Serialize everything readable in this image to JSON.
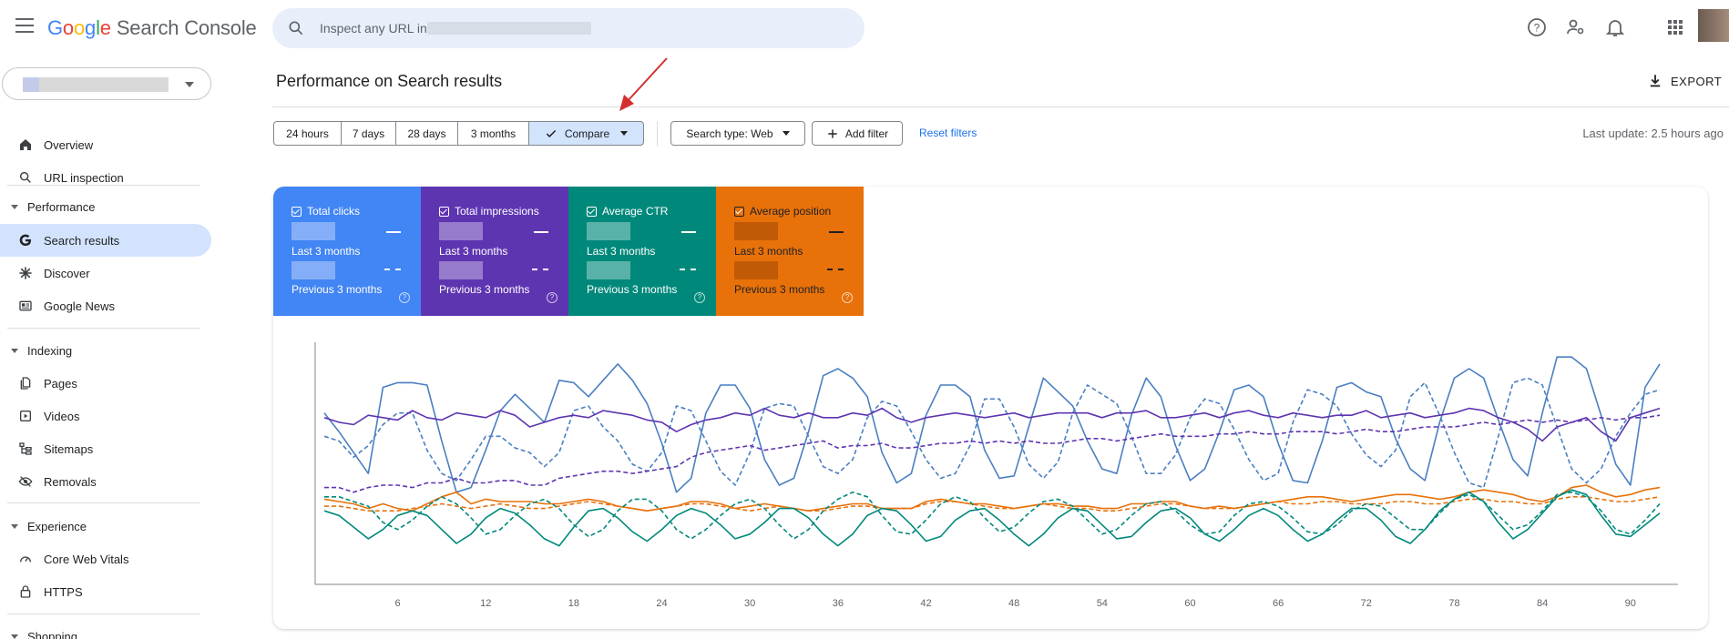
{
  "app": {
    "brand_letters": [
      "G",
      "o",
      "o",
      "g",
      "l",
      "e"
    ],
    "product": "Search Console"
  },
  "search": {
    "placeholder": "Inspect any URL in"
  },
  "header_icons": [
    "help-icon",
    "account-settings-icon",
    "notifications-icon",
    "apps-grid-icon"
  ],
  "sidebar": {
    "items": [
      {
        "label": "Overview",
        "icon": "home-icon"
      },
      {
        "label": "URL inspection",
        "icon": "search-icon"
      },
      {
        "label": "Performance",
        "section": true
      },
      {
        "label": "Search results",
        "icon": "google-g-icon",
        "active": true
      },
      {
        "label": "Discover",
        "icon": "asterisk-icon"
      },
      {
        "label": "Google News",
        "icon": "news-icon"
      },
      {
        "label": "Indexing",
        "section": true
      },
      {
        "label": "Pages",
        "icon": "pages-icon"
      },
      {
        "label": "Videos",
        "icon": "video-icon"
      },
      {
        "label": "Sitemaps",
        "icon": "sitemap-icon"
      },
      {
        "label": "Removals",
        "icon": "removals-icon"
      },
      {
        "label": "Experience",
        "section": true
      },
      {
        "label": "Core Web Vitals",
        "icon": "gauge-icon"
      },
      {
        "label": "HTTPS",
        "icon": "lock-icon"
      },
      {
        "label": "Shopping",
        "section": true
      }
    ]
  },
  "main": {
    "title": "Performance on Search results",
    "export_label": "EXPORT",
    "date_ranges": [
      "24 hours",
      "7 days",
      "28 days",
      "3 months"
    ],
    "compare_label": "Compare",
    "search_type_label": "Search type: Web",
    "add_filter_label": "Add filter",
    "reset_filters_label": "Reset filters",
    "last_update": "Last update: 2.5 hours ago"
  },
  "metrics": [
    {
      "label": "Total clicks",
      "current": "Last 3 months",
      "previous": "Previous 3 months",
      "color": "#4285f4"
    },
    {
      "label": "Total impressions",
      "current": "Last 3 months",
      "previous": "Previous 3 months",
      "color": "#5e35b1"
    },
    {
      "label": "Average CTR",
      "current": "Last 3 months",
      "previous": "Previous 3 months",
      "color": "#00897b"
    },
    {
      "label": "Average position",
      "current": "Last 3 months",
      "previous": "Previous 3 months",
      "color": "#e8710a"
    }
  ],
  "chart_data": {
    "type": "line",
    "x_ticks": [
      6,
      12,
      18,
      24,
      30,
      36,
      42,
      48,
      54,
      60,
      66,
      72,
      78,
      84,
      90
    ],
    "x": [
      1,
      2,
      3,
      4,
      5,
      6,
      7,
      8,
      9,
      10,
      11,
      12,
      13,
      14,
      15,
      16,
      17,
      18,
      19,
      20,
      21,
      22,
      23,
      24,
      25,
      26,
      27,
      28,
      29,
      30,
      31,
      32,
      33,
      34,
      35,
      36,
      37,
      38,
      39,
      40,
      41,
      42,
      43,
      44,
      45,
      46,
      47,
      48,
      49,
      50,
      51,
      52,
      53,
      54,
      55,
      56,
      57,
      58,
      59,
      60,
      61,
      62,
      63,
      64,
      65,
      66,
      67,
      68,
      69,
      70,
      71,
      72,
      73,
      74,
      75,
      76,
      77,
      78,
      79,
      80,
      81,
      82,
      83,
      84,
      85,
      86,
      87,
      88,
      89,
      90,
      91,
      92
    ],
    "grid": false,
    "series": [
      {
        "color": "#4a7fc1",
        "style": "solid",
        "values": [
          0.72,
          0.64,
          0.55,
          0.46,
          0.83,
          0.85,
          0.85,
          0.84,
          0.6,
          0.38,
          0.4,
          0.56,
          0.73,
          0.8,
          0.74,
          0.68,
          0.86,
          0.85,
          0.79,
          0.86,
          0.93,
          0.86,
          0.76,
          0.59,
          0.38,
          0.44,
          0.72,
          0.84,
          0.84,
          0.74,
          0.52,
          0.41,
          0.44,
          0.64,
          0.88,
          0.91,
          0.87,
          0.79,
          0.55,
          0.42,
          0.46,
          0.71,
          0.84,
          0.84,
          0.79,
          0.56,
          0.44,
          0.45,
          0.66,
          0.87,
          0.81,
          0.75,
          0.6,
          0.48,
          0.46,
          0.71,
          0.87,
          0.79,
          0.58,
          0.43,
          0.48,
          0.64,
          0.82,
          0.84,
          0.79,
          0.59,
          0.43,
          0.42,
          0.6,
          0.83,
          0.85,
          0.81,
          0.79,
          0.61,
          0.48,
          0.43,
          0.68,
          0.87,
          0.91,
          0.87,
          0.69,
          0.52,
          0.45,
          0.72,
          0.96,
          0.96,
          0.91,
          0.71,
          0.5,
          0.41,
          0.83,
          0.93
        ]
      },
      {
        "color": "#4a7fc1",
        "style": "dashed",
        "values": [
          0.62,
          0.6,
          0.53,
          0.58,
          0.67,
          0.72,
          0.72,
          0.56,
          0.46,
          0.43,
          0.52,
          0.62,
          0.62,
          0.57,
          0.55,
          0.49,
          0.55,
          0.73,
          0.75,
          0.66,
          0.6,
          0.5,
          0.47,
          0.55,
          0.75,
          0.73,
          0.6,
          0.47,
          0.41,
          0.55,
          0.74,
          0.76,
          0.75,
          0.62,
          0.49,
          0.46,
          0.52,
          0.7,
          0.77,
          0.75,
          0.64,
          0.52,
          0.44,
          0.46,
          0.58,
          0.78,
          0.78,
          0.66,
          0.5,
          0.44,
          0.51,
          0.72,
          0.84,
          0.8,
          0.76,
          0.62,
          0.46,
          0.46,
          0.54,
          0.7,
          0.78,
          0.76,
          0.65,
          0.52,
          0.43,
          0.46,
          0.68,
          0.82,
          0.8,
          0.75,
          0.63,
          0.54,
          0.49,
          0.56,
          0.79,
          0.85,
          0.71,
          0.55,
          0.42,
          0.4,
          0.62,
          0.85,
          0.87,
          0.84,
          0.66,
          0.48,
          0.42,
          0.48,
          0.62,
          0.72,
          0.8,
          0.82
        ]
      },
      {
        "color": "#5e35b1",
        "style": "solid",
        "values": [
          0.7,
          0.68,
          0.67,
          0.71,
          0.7,
          0.69,
          0.73,
          0.7,
          0.69,
          0.72,
          0.71,
          0.7,
          0.73,
          0.71,
          0.66,
          0.68,
          0.7,
          0.71,
          0.7,
          0.73,
          0.72,
          0.71,
          0.69,
          0.68,
          0.64,
          0.67,
          0.69,
          0.7,
          0.72,
          0.71,
          0.74,
          0.71,
          0.7,
          0.72,
          0.7,
          0.7,
          0.72,
          0.71,
          0.74,
          0.7,
          0.68,
          0.7,
          0.71,
          0.72,
          0.71,
          0.7,
          0.71,
          0.72,
          0.7,
          0.71,
          0.72,
          0.72,
          0.72,
          0.7,
          0.72,
          0.72,
          0.73,
          0.7,
          0.7,
          0.71,
          0.72,
          0.7,
          0.72,
          0.73,
          0.71,
          0.7,
          0.72,
          0.71,
          0.7,
          0.71,
          0.71,
          0.73,
          0.7,
          0.71,
          0.72,
          0.7,
          0.71,
          0.72,
          0.74,
          0.73,
          0.7,
          0.68,
          0.65,
          0.6,
          0.66,
          0.68,
          0.7,
          0.64,
          0.6,
          0.7,
          0.72,
          0.74
        ]
      },
      {
        "color": "#5e35b1",
        "style": "dashed",
        "values": [
          0.4,
          0.4,
          0.38,
          0.4,
          0.41,
          0.41,
          0.4,
          0.42,
          0.42,
          0.44,
          0.42,
          0.42,
          0.43,
          0.43,
          0.41,
          0.41,
          0.44,
          0.45,
          0.46,
          0.47,
          0.47,
          0.46,
          0.47,
          0.48,
          0.49,
          0.53,
          0.55,
          0.56,
          0.57,
          0.58,
          0.56,
          0.57,
          0.58,
          0.59,
          0.6,
          0.57,
          0.58,
          0.58,
          0.59,
          0.57,
          0.57,
          0.58,
          0.59,
          0.59,
          0.6,
          0.59,
          0.6,
          0.59,
          0.6,
          0.59,
          0.59,
          0.6,
          0.61,
          0.61,
          0.6,
          0.61,
          0.62,
          0.63,
          0.62,
          0.62,
          0.62,
          0.63,
          0.63,
          0.64,
          0.63,
          0.63,
          0.64,
          0.64,
          0.64,
          0.63,
          0.64,
          0.65,
          0.64,
          0.64,
          0.65,
          0.66,
          0.66,
          0.66,
          0.67,
          0.68,
          0.67,
          0.68,
          0.69,
          0.68,
          0.69,
          0.68,
          0.69,
          0.7,
          0.69,
          0.7,
          0.7,
          0.71
        ]
      },
      {
        "color": "#e8710a",
        "style": "solid",
        "values": [
          0.35,
          0.34,
          0.33,
          0.31,
          0.33,
          0.31,
          0.3,
          0.33,
          0.36,
          0.38,
          0.33,
          0.35,
          0.34,
          0.34,
          0.34,
          0.33,
          0.33,
          0.34,
          0.35,
          0.34,
          0.32,
          0.31,
          0.3,
          0.31,
          0.32,
          0.34,
          0.34,
          0.33,
          0.31,
          0.32,
          0.33,
          0.32,
          0.31,
          0.3,
          0.31,
          0.32,
          0.33,
          0.33,
          0.31,
          0.31,
          0.31,
          0.34,
          0.35,
          0.34,
          0.33,
          0.33,
          0.32,
          0.31,
          0.32,
          0.33,
          0.33,
          0.32,
          0.32,
          0.31,
          0.31,
          0.33,
          0.33,
          0.34,
          0.34,
          0.32,
          0.31,
          0.32,
          0.31,
          0.32,
          0.33,
          0.34,
          0.35,
          0.36,
          0.36,
          0.35,
          0.34,
          0.35,
          0.36,
          0.37,
          0.37,
          0.36,
          0.35,
          0.36,
          0.38,
          0.39,
          0.38,
          0.37,
          0.35,
          0.34,
          0.36,
          0.4,
          0.41,
          0.38,
          0.36,
          0.37,
          0.39,
          0.4
        ]
      },
      {
        "color": "#e8710a",
        "style": "dashed",
        "values": [
          0.32,
          0.32,
          0.31,
          0.3,
          0.3,
          0.3,
          0.31,
          0.32,
          0.33,
          0.32,
          0.31,
          0.32,
          0.33,
          0.32,
          0.31,
          0.31,
          0.32,
          0.33,
          0.34,
          0.33,
          0.32,
          0.31,
          0.3,
          0.31,
          0.32,
          0.33,
          0.33,
          0.32,
          0.31,
          0.3,
          0.31,
          0.32,
          0.31,
          0.3,
          0.3,
          0.31,
          0.32,
          0.32,
          0.31,
          0.31,
          0.31,
          0.33,
          0.34,
          0.34,
          0.33,
          0.32,
          0.31,
          0.31,
          0.32,
          0.33,
          0.32,
          0.31,
          0.31,
          0.3,
          0.3,
          0.31,
          0.32,
          0.33,
          0.33,
          0.32,
          0.31,
          0.31,
          0.31,
          0.32,
          0.33,
          0.34,
          0.33,
          0.33,
          0.34,
          0.34,
          0.33,
          0.33,
          0.33,
          0.34,
          0.34,
          0.33,
          0.33,
          0.34,
          0.35,
          0.35,
          0.34,
          0.34,
          0.33,
          0.33,
          0.35,
          0.36,
          0.36,
          0.35,
          0.34,
          0.34,
          0.35,
          0.36
        ]
      },
      {
        "color": "#00897b",
        "style": "solid",
        "values": [
          0.3,
          0.28,
          0.23,
          0.18,
          0.22,
          0.28,
          0.3,
          0.28,
          0.22,
          0.16,
          0.2,
          0.27,
          0.31,
          0.29,
          0.24,
          0.18,
          0.15,
          0.23,
          0.3,
          0.31,
          0.27,
          0.21,
          0.17,
          0.22,
          0.28,
          0.31,
          0.29,
          0.24,
          0.18,
          0.2,
          0.25,
          0.31,
          0.31,
          0.27,
          0.2,
          0.15,
          0.2,
          0.28,
          0.31,
          0.3,
          0.24,
          0.17,
          0.19,
          0.26,
          0.3,
          0.31,
          0.26,
          0.2,
          0.15,
          0.2,
          0.27,
          0.31,
          0.3,
          0.24,
          0.18,
          0.19,
          0.25,
          0.3,
          0.31,
          0.27,
          0.2,
          0.17,
          0.22,
          0.28,
          0.31,
          0.28,
          0.22,
          0.17,
          0.2,
          0.26,
          0.31,
          0.31,
          0.26,
          0.19,
          0.16,
          0.22,
          0.3,
          0.35,
          0.38,
          0.34,
          0.25,
          0.18,
          0.22,
          0.29,
          0.36,
          0.39,
          0.37,
          0.28,
          0.2,
          0.19,
          0.24,
          0.29
        ]
      },
      {
        "color": "#00897b",
        "style": "dashed",
        "values": [
          0.36,
          0.36,
          0.34,
          0.32,
          0.25,
          0.22,
          0.26,
          0.32,
          0.36,
          0.33,
          0.27,
          0.2,
          0.22,
          0.28,
          0.33,
          0.35,
          0.31,
          0.24,
          0.19,
          0.22,
          0.3,
          0.35,
          0.35,
          0.3,
          0.22,
          0.18,
          0.22,
          0.28,
          0.33,
          0.35,
          0.31,
          0.24,
          0.18,
          0.22,
          0.3,
          0.35,
          0.38,
          0.36,
          0.28,
          0.21,
          0.2,
          0.26,
          0.33,
          0.36,
          0.34,
          0.27,
          0.21,
          0.23,
          0.29,
          0.34,
          0.35,
          0.32,
          0.26,
          0.2,
          0.22,
          0.28,
          0.33,
          0.34,
          0.3,
          0.24,
          0.2,
          0.21,
          0.28,
          0.33,
          0.34,
          0.32,
          0.27,
          0.21,
          0.2,
          0.24,
          0.3,
          0.33,
          0.32,
          0.27,
          0.22,
          0.22,
          0.29,
          0.35,
          0.37,
          0.34,
          0.28,
          0.22,
          0.24,
          0.3,
          0.37,
          0.38,
          0.36,
          0.3,
          0.22,
          0.2,
          0.26,
          0.33
        ]
      }
    ]
  }
}
